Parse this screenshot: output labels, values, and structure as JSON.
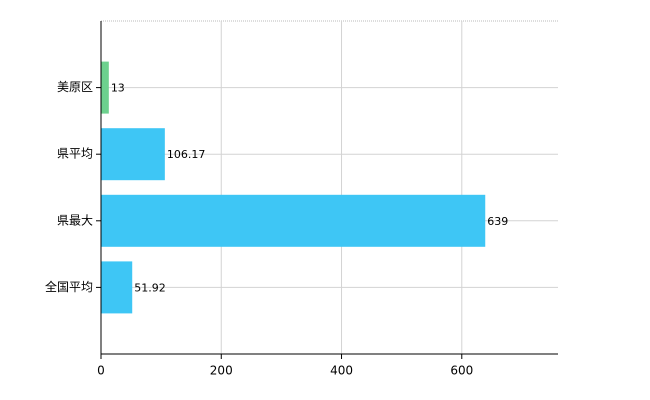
{
  "chart_data": {
    "type": "bar",
    "orientation": "horizontal",
    "categories": [
      "美原区",
      "県平均",
      "県最大",
      "全国平均"
    ],
    "values": [
      13,
      106.17,
      639,
      51.92
    ],
    "colors": [
      "#6dd18e",
      "#3ec6f5",
      "#3ec6f5",
      "#3ec6f5"
    ],
    "xlim": [
      0,
      760
    ],
    "xticks": [
      0,
      200,
      400,
      600
    ],
    "grid": true
  }
}
